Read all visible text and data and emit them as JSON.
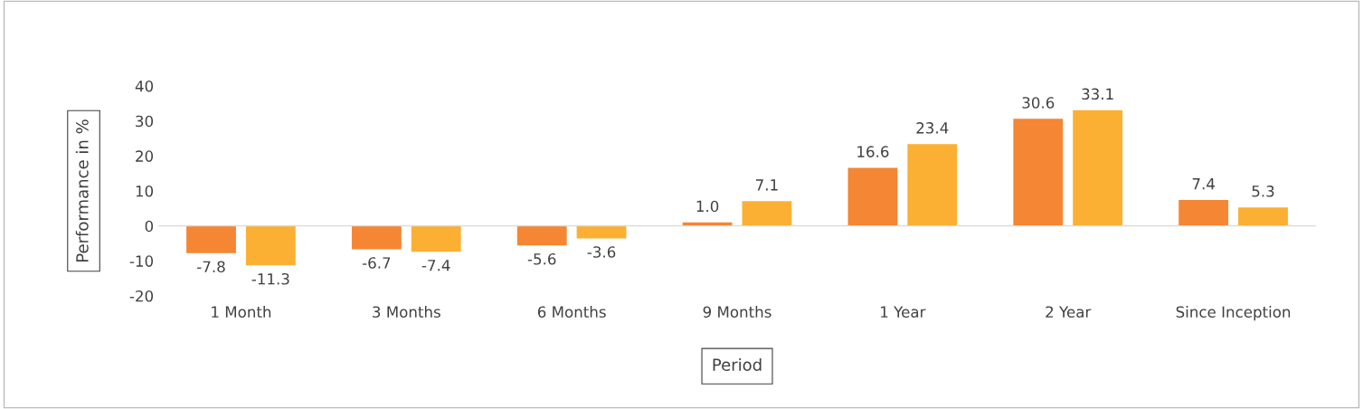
{
  "chart_data": {
    "type": "bar",
    "xlabel": "Period",
    "ylabel": "Performance in %",
    "categories": [
      "1 Month",
      "3 Months",
      "6 Months",
      "9 Months",
      "1 Year",
      "2 Year",
      "Since Inception"
    ],
    "series": [
      {
        "color": "#f58634",
        "values": [
          -7.8,
          -6.7,
          -5.6,
          1.0,
          16.6,
          30.6,
          7.4
        ],
        "value_labels": [
          "-7.8",
          "-6.7",
          "-5.6",
          "1.0",
          "16.6",
          "30.6",
          "7.4"
        ]
      },
      {
        "color": "#fbb034",
        "values": [
          -11.3,
          -7.4,
          -3.6,
          7.1,
          23.4,
          33.1,
          5.3
        ],
        "value_labels": [
          "-11.3",
          "-7.4",
          "-3.6",
          "7.1",
          "23.4",
          "33.1",
          "5.3"
        ]
      }
    ],
    "ylim": [
      -20,
      40
    ],
    "yticks": [
      -20,
      -10,
      0,
      10,
      20,
      30,
      40
    ]
  }
}
